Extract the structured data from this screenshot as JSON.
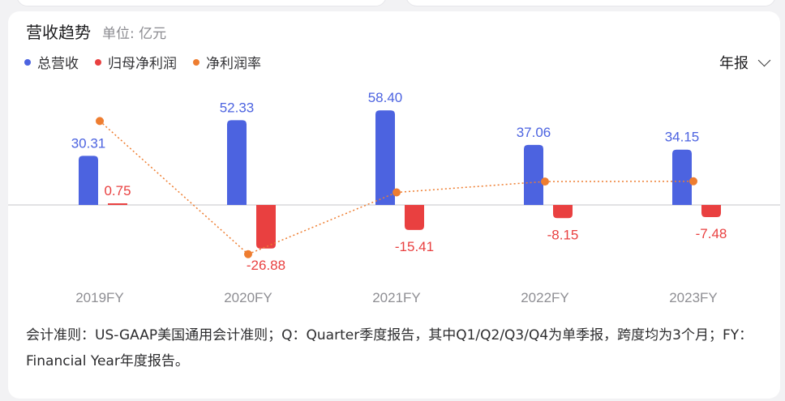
{
  "header": {
    "title": "营收趋势",
    "unit": "单位: 亿元"
  },
  "legend": {
    "items": [
      {
        "label": "总营收",
        "color": "#4c63e0"
      },
      {
        "label": "归母净利润",
        "color": "#e94040"
      },
      {
        "label": "净利润率",
        "color": "#ee7d30"
      }
    ]
  },
  "period_select": {
    "value": "年报",
    "icon": "chevron-down-icon"
  },
  "chart_data": {
    "type": "bar",
    "categories": [
      "2019FY",
      "2020FY",
      "2021FY",
      "2022FY",
      "2023FY"
    ],
    "series": [
      {
        "name": "总营收",
        "type": "bar",
        "color": "#4c63e0",
        "values": [
          30.31,
          52.33,
          58.4,
          37.06,
          34.15
        ]
      },
      {
        "name": "归母净利润",
        "type": "bar",
        "color": "#e94040",
        "values": [
          0.75,
          -26.88,
          -15.41,
          -8.15,
          -7.48
        ]
      },
      {
        "name": "净利润率",
        "type": "line",
        "color": "#ee7d30",
        "values": [
          2.5,
          -51.4,
          -26.4,
          -22.0,
          -21.9
        ]
      }
    ],
    "value_labels": {
      "revenue": [
        "30.31",
        "52.33",
        "58.40",
        "37.06",
        "34.15"
      ],
      "profit": [
        "0.75",
        "-26.88",
        "-15.41",
        "-8.15",
        "-7.48"
      ]
    }
  },
  "footnote": "会计准则：US-GAAP美国通用会计准则；Q：Quarter季度报告，其中Q1/Q2/Q3/Q4为单季报，跨度均为3个月；FY：Financial Year年度报告。"
}
